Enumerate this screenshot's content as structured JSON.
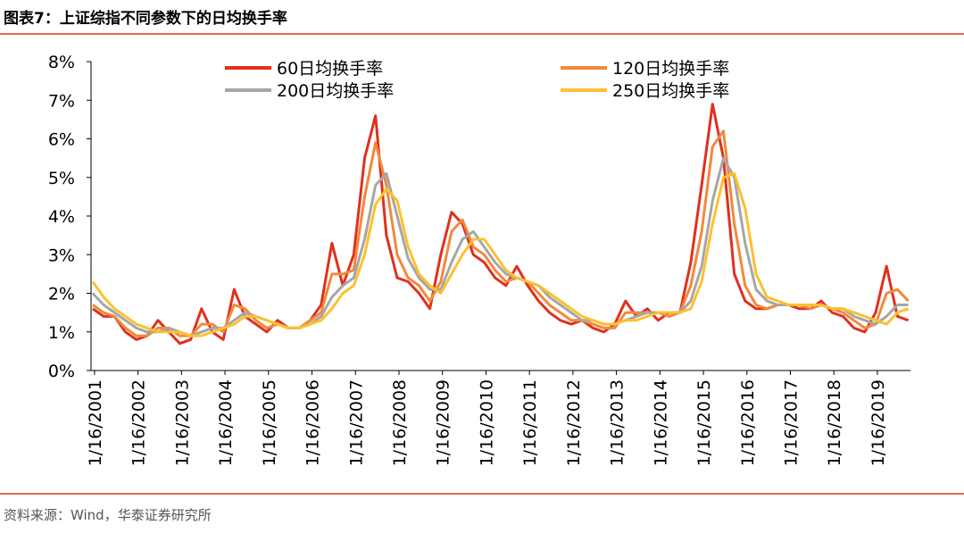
{
  "chart_data": {
    "type": "line",
    "title": "图表7：上证综指不同参数下的日均换手率",
    "source": "资料来源：Wind，华泰证券研究所",
    "legend": "top",
    "x": [
      2001,
      2001.25,
      2001.5,
      2001.75,
      2002,
      2002.25,
      2002.5,
      2002.75,
      2003,
      2003.25,
      2003.5,
      2003.75,
      2004,
      2004.25,
      2004.5,
      2004.75,
      2005,
      2005.25,
      2005.5,
      2005.75,
      2006,
      2006.25,
      2006.5,
      2006.75,
      2007,
      2007.25,
      2007.5,
      2007.75,
      2008,
      2008.25,
      2008.5,
      2008.75,
      2009,
      2009.25,
      2009.5,
      2009.75,
      2010,
      2010.25,
      2010.5,
      2010.75,
      2011,
      2011.25,
      2011.5,
      2011.75,
      2012,
      2012.25,
      2012.5,
      2012.75,
      2013,
      2013.25,
      2013.5,
      2013.75,
      2014,
      2014.25,
      2014.5,
      2014.75,
      2015,
      2015.25,
      2015.5,
      2015.75,
      2016,
      2016.25,
      2016.5,
      2016.75,
      2017,
      2017.25,
      2017.5,
      2017.75,
      2018,
      2018.25,
      2018.5,
      2018.75,
      2019,
      2019.25,
      2019.5,
      2019.75
    ],
    "xlim": [
      2000.96,
      2019.8
    ],
    "xticks": [
      {
        "value": 2001.04,
        "label": "1/16/2001"
      },
      {
        "value": 2002.04,
        "label": "1/16/2002"
      },
      {
        "value": 2003.04,
        "label": "1/16/2003"
      },
      {
        "value": 2004.04,
        "label": "1/16/2004"
      },
      {
        "value": 2005.04,
        "label": "1/16/2005"
      },
      {
        "value": 2006.04,
        "label": "1/16/2006"
      },
      {
        "value": 2007.04,
        "label": "1/16/2007"
      },
      {
        "value": 2008.04,
        "label": "1/16/2008"
      },
      {
        "value": 2009.04,
        "label": "1/16/2009"
      },
      {
        "value": 2010.04,
        "label": "1/16/2010"
      },
      {
        "value": 2011.04,
        "label": "1/16/2011"
      },
      {
        "value": 2012.04,
        "label": "1/16/2012"
      },
      {
        "value": 2013.04,
        "label": "1/16/2013"
      },
      {
        "value": 2014.04,
        "label": "1/16/2014"
      },
      {
        "value": 2015.04,
        "label": "1/16/2015"
      },
      {
        "value": 2016.04,
        "label": "1/16/2016"
      },
      {
        "value": 2017.04,
        "label": "1/16/2017"
      },
      {
        "value": 2018.04,
        "label": "1/16/2018"
      },
      {
        "value": 2019.04,
        "label": "1/16/2019"
      }
    ],
    "ylim": [
      0,
      8
    ],
    "yticks": [
      {
        "value": 0,
        "label": "0%"
      },
      {
        "value": 1,
        "label": "1%"
      },
      {
        "value": 2,
        "label": "2%"
      },
      {
        "value": 3,
        "label": "3%"
      },
      {
        "value": 4,
        "label": "4%"
      },
      {
        "value": 5,
        "label": "5%"
      },
      {
        "value": 6,
        "label": "6%"
      },
      {
        "value": 7,
        "label": "7%"
      },
      {
        "value": 8,
        "label": "8%"
      }
    ],
    "series": [
      {
        "name": "60日均换手率",
        "color": "#e0301e",
        "values": [
          1.6,
          1.4,
          1.4,
          1.0,
          0.8,
          0.9,
          1.3,
          1.0,
          0.7,
          0.8,
          1.6,
          1.0,
          0.8,
          2.1,
          1.4,
          1.2,
          1.0,
          1.3,
          1.1,
          1.1,
          1.3,
          1.7,
          3.3,
          2.2,
          3.0,
          5.5,
          6.6,
          3.5,
          2.4,
          2.3,
          2.0,
          1.6,
          3.0,
          4.1,
          3.8,
          3.0,
          2.8,
          2.4,
          2.2,
          2.7,
          2.2,
          1.8,
          1.5,
          1.3,
          1.2,
          1.3,
          1.1,
          1.0,
          1.2,
          1.8,
          1.4,
          1.6,
          1.3,
          1.5,
          1.5,
          2.8,
          4.8,
          6.9,
          5.5,
          2.5,
          1.8,
          1.6,
          1.6,
          1.7,
          1.7,
          1.6,
          1.6,
          1.8,
          1.5,
          1.4,
          1.1,
          1.0,
          1.5,
          2.7,
          1.4,
          1.3
        ]
      },
      {
        "name": "120日均换手率",
        "color": "#f08a3c",
        "values": [
          1.7,
          1.5,
          1.4,
          1.1,
          0.9,
          0.9,
          1.1,
          1.1,
          0.9,
          0.9,
          1.2,
          1.2,
          1.0,
          1.7,
          1.6,
          1.3,
          1.1,
          1.2,
          1.1,
          1.1,
          1.3,
          1.5,
          2.5,
          2.5,
          2.6,
          4.5,
          5.9,
          4.8,
          3.0,
          2.4,
          2.2,
          1.8,
          2.3,
          3.6,
          3.9,
          3.2,
          3.0,
          2.6,
          2.3,
          2.4,
          2.3,
          2.0,
          1.7,
          1.5,
          1.3,
          1.3,
          1.2,
          1.1,
          1.1,
          1.5,
          1.5,
          1.5,
          1.5,
          1.4,
          1.5,
          2.2,
          3.6,
          5.8,
          6.2,
          3.8,
          2.2,
          1.7,
          1.6,
          1.7,
          1.7,
          1.7,
          1.6,
          1.7,
          1.6,
          1.5,
          1.3,
          1.1,
          1.2,
          2.0,
          2.1,
          1.8
        ]
      },
      {
        "name": "200日均换手率",
        "color": "#a6a6a6",
        "values": [
          2.0,
          1.7,
          1.5,
          1.3,
          1.1,
          1.0,
          1.0,
          1.1,
          1.0,
          0.9,
          1.0,
          1.1,
          1.1,
          1.3,
          1.5,
          1.4,
          1.3,
          1.2,
          1.1,
          1.1,
          1.2,
          1.4,
          1.9,
          2.2,
          2.4,
          3.4,
          4.8,
          5.1,
          4.0,
          2.9,
          2.4,
          2.1,
          2.1,
          2.8,
          3.4,
          3.6,
          3.2,
          2.8,
          2.5,
          2.4,
          2.3,
          2.2,
          1.9,
          1.7,
          1.5,
          1.3,
          1.3,
          1.2,
          1.2,
          1.3,
          1.4,
          1.5,
          1.5,
          1.5,
          1.5,
          1.8,
          2.7,
          4.4,
          5.5,
          5.0,
          3.3,
          2.1,
          1.8,
          1.7,
          1.7,
          1.7,
          1.7,
          1.7,
          1.6,
          1.6,
          1.4,
          1.3,
          1.2,
          1.4,
          1.7,
          1.7
        ]
      },
      {
        "name": "250日均换手率",
        "color": "#fcc12e",
        "values": [
          2.3,
          1.9,
          1.6,
          1.4,
          1.2,
          1.1,
          1.0,
          1.0,
          1.0,
          0.9,
          0.9,
          1.0,
          1.1,
          1.2,
          1.4,
          1.4,
          1.3,
          1.2,
          1.1,
          1.1,
          1.2,
          1.3,
          1.6,
          2.0,
          2.2,
          3.0,
          4.3,
          4.7,
          4.4,
          3.2,
          2.5,
          2.2,
          2.0,
          2.5,
          3.0,
          3.4,
          3.4,
          3.0,
          2.6,
          2.4,
          2.3,
          2.2,
          2.0,
          1.8,
          1.6,
          1.4,
          1.3,
          1.2,
          1.2,
          1.3,
          1.3,
          1.4,
          1.5,
          1.5,
          1.5,
          1.6,
          2.3,
          3.8,
          5.0,
          5.1,
          4.2,
          2.5,
          1.9,
          1.8,
          1.7,
          1.7,
          1.7,
          1.7,
          1.6,
          1.6,
          1.5,
          1.4,
          1.3,
          1.2,
          1.5,
          1.6
        ]
      }
    ]
  }
}
